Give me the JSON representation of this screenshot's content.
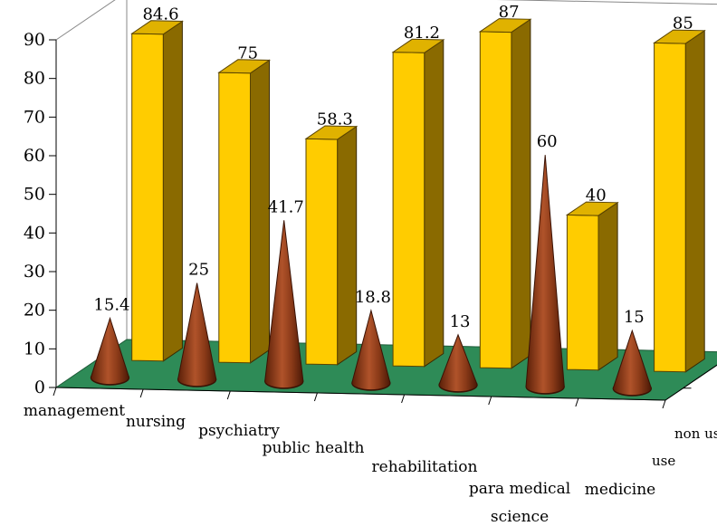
{
  "chart_data": {
    "type": "bar",
    "title": "",
    "xlabel": "",
    "ylabel": "",
    "ylim": [
      0,
      90
    ],
    "yticks": [
      0,
      10,
      20,
      30,
      40,
      50,
      60,
      70,
      80,
      90
    ],
    "grid": false,
    "categories": [
      "management",
      "nursing",
      "psychiatry",
      "public health",
      "rehabilitation",
      "para medical science",
      "medicine"
    ],
    "depth_labels": [
      "non use",
      "use"
    ],
    "series": [
      {
        "name": "use",
        "shape": "cone",
        "color": "#8b3a1a",
        "values": [
          15.4,
          25,
          41.7,
          18.8,
          13,
          60,
          15
        ]
      },
      {
        "name": "non use",
        "shape": "box",
        "color": "#ffcc00",
        "values": [
          84.6,
          75,
          58.3,
          81.2,
          87,
          40,
          85
        ]
      }
    ],
    "floor_color": "#2e8b57"
  }
}
